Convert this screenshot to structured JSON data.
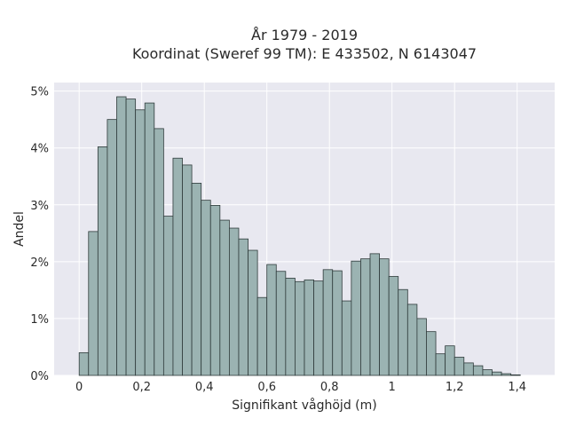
{
  "chart_data": {
    "type": "bar",
    "title": [
      "År 1979 - 2019",
      "Koordinat (Sweref 99 TM): E 433502, N 6143047"
    ],
    "xlabel": "Signifikant våghöjd (m)",
    "ylabel": "Andel",
    "xlim": [
      -0.08,
      1.52
    ],
    "ylim": [
      0,
      5.15
    ],
    "x_ticks": [
      0,
      0.2,
      0.4,
      0.6,
      0.8,
      1.0,
      1.2,
      1.4
    ],
    "x_tick_labels": [
      "0",
      "0,2",
      "0,4",
      "0,6",
      "0,8",
      "1",
      "1,2",
      "1,4"
    ],
    "y_ticks": [
      0,
      1,
      2,
      3,
      4,
      5
    ],
    "y_tick_labels": [
      "0%",
      "1%",
      "2%",
      "3%",
      "4%",
      "5%"
    ],
    "bin_width": 0.03,
    "bin_start": 0,
    "values": [
      0.4,
      2.53,
      4.02,
      4.5,
      4.9,
      4.86,
      4.67,
      4.79,
      4.34,
      2.8,
      3.82,
      3.7,
      3.38,
      3.08,
      2.99,
      2.73,
      2.59,
      2.4,
      2.2,
      1.37,
      1.95,
      1.83,
      1.71,
      1.65,
      1.68,
      1.66,
      1.86,
      1.84,
      1.31,
      2.01,
      2.05,
      2.14,
      2.05,
      1.74,
      1.51,
      1.25,
      1.0,
      0.77,
      0.38,
      0.52,
      0.32,
      0.22,
      0.17,
      0.1,
      0.06,
      0.03,
      0.01
    ],
    "grid": true,
    "colors": {
      "bar_fill": "#9bb3b2",
      "bar_stroke": "#2f3b3b",
      "plot_bg": "#e8e8f0",
      "grid": "#ffffff"
    }
  }
}
